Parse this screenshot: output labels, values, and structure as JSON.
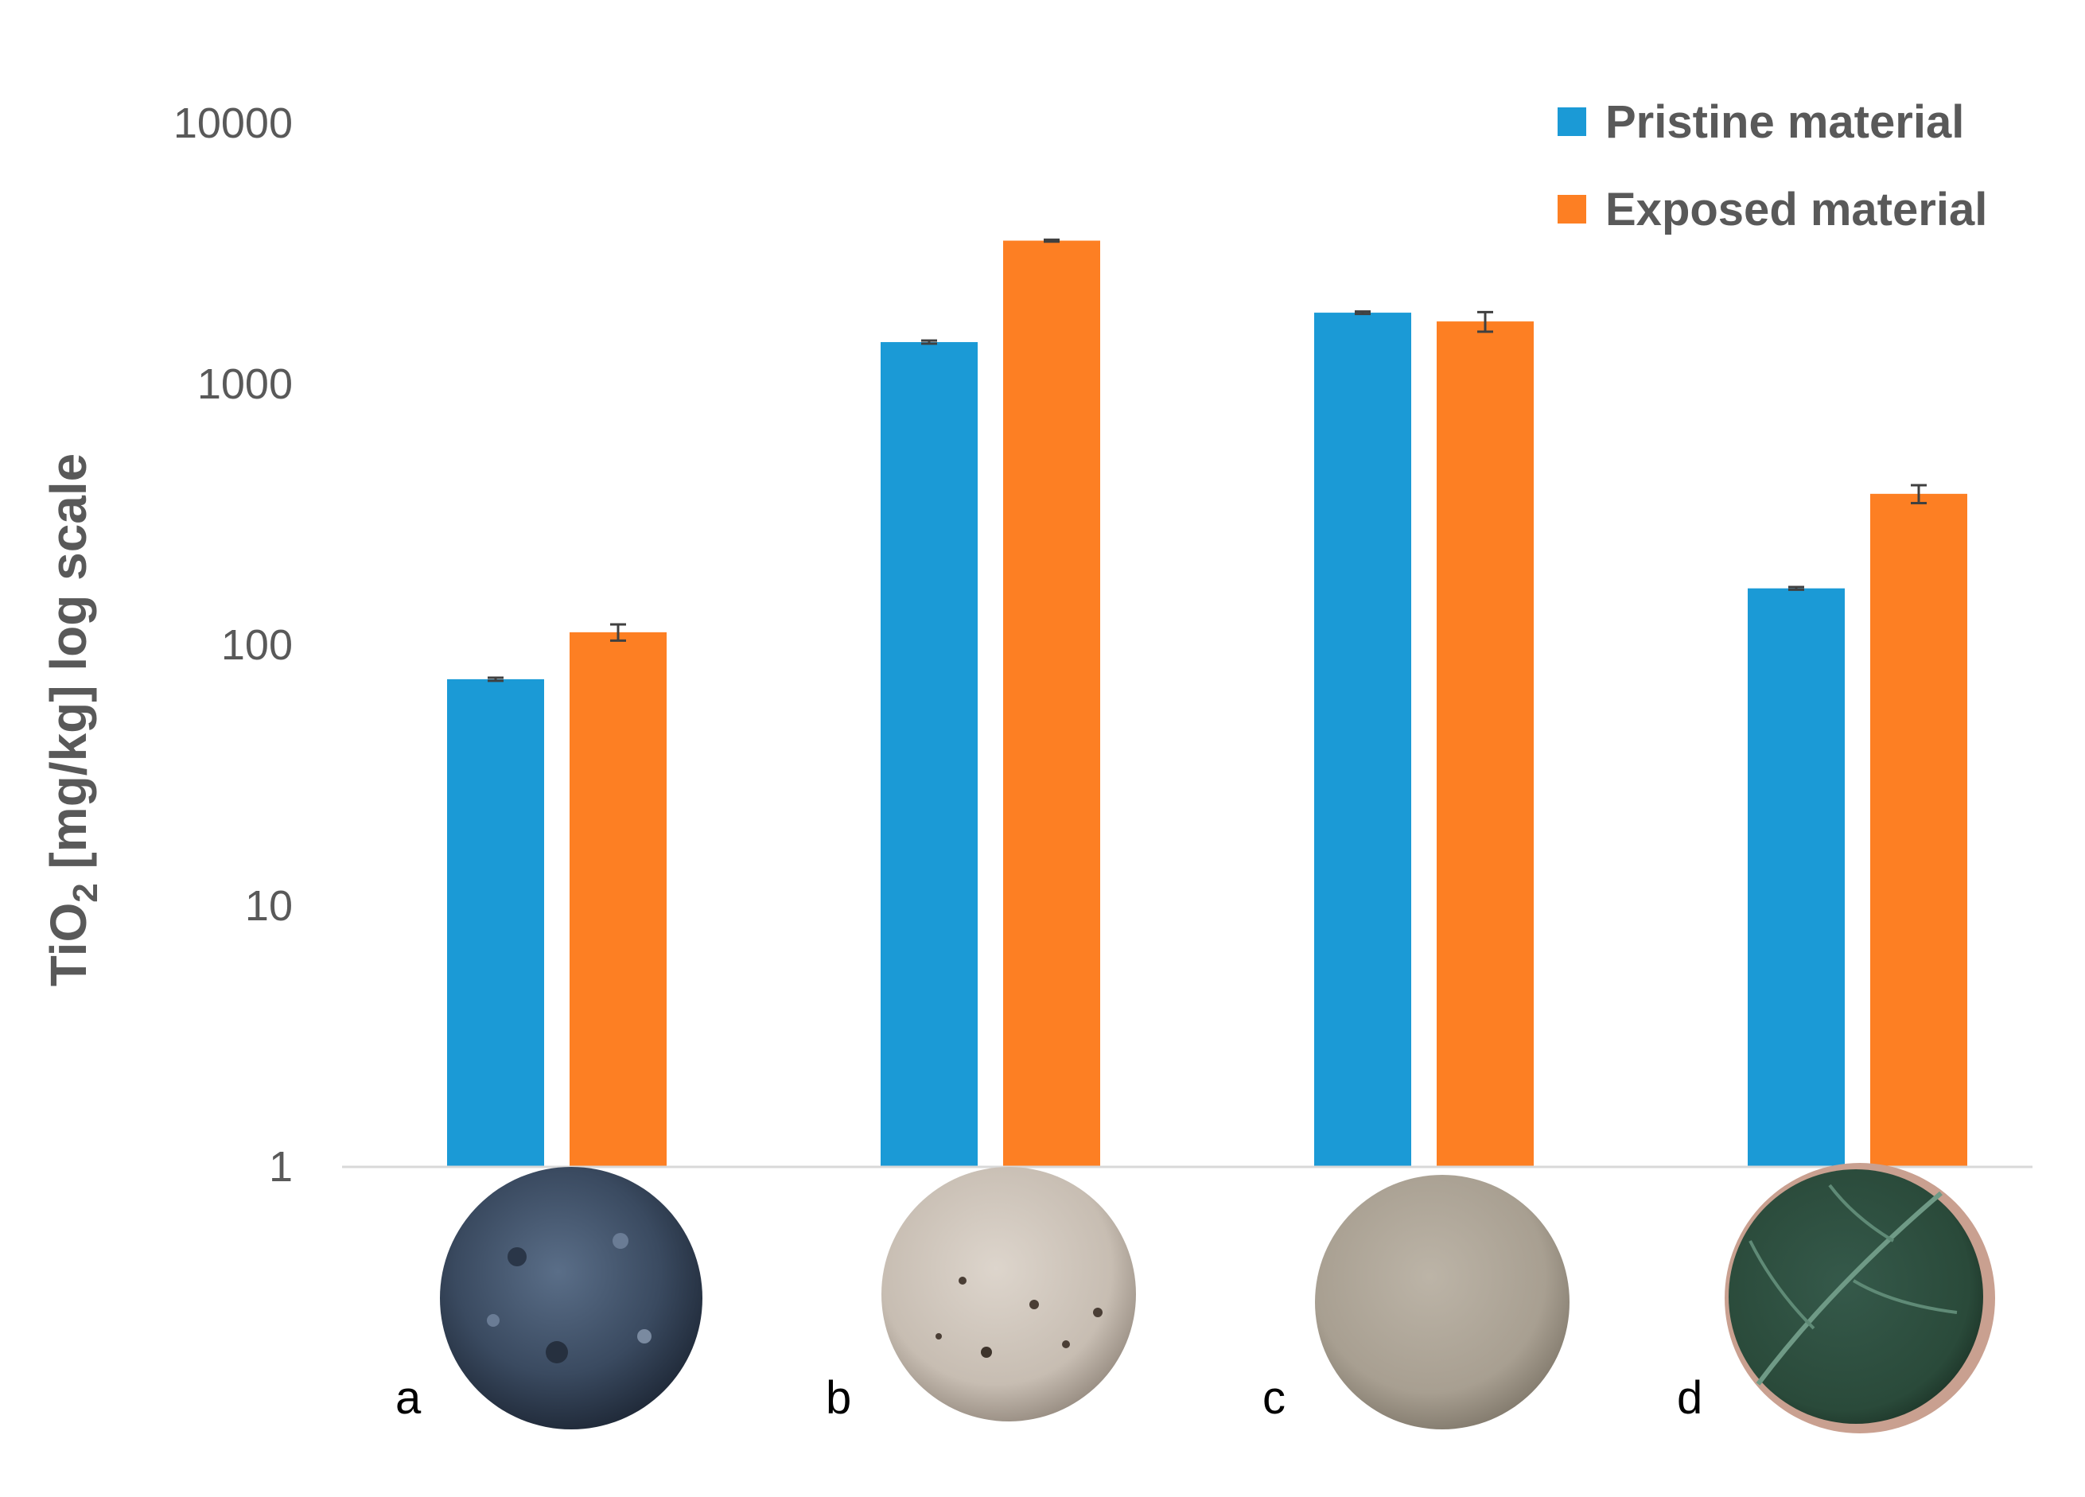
{
  "chart_data": {
    "type": "bar",
    "ylabel_parts": [
      "TiO",
      "2",
      " [mg/kg] log scale"
    ],
    "yscale": "log",
    "ylim": [
      1,
      10000
    ],
    "yticks": [
      "1",
      "10",
      "100",
      "1000",
      "10000"
    ],
    "categories": [
      "a",
      "b",
      "c",
      "d"
    ],
    "series": [
      {
        "name": "Pristine material",
        "color": "#1b9ad6",
        "values": [
          74,
          1450,
          1880,
          165
        ],
        "errors": [
          1,
          20,
          20,
          2
        ]
      },
      {
        "name": "Exposed material",
        "color": "#fd7f23",
        "values": [
          112,
          3550,
          1740,
          380
        ],
        "errors": [
          8,
          30,
          150,
          30
        ]
      }
    ],
    "legend_position": "top-right",
    "grid": false,
    "sample_photos": [
      {
        "category": "a",
        "color": "#3a4a60",
        "image": "dark-blue-grey-powder-sample"
      },
      {
        "category": "b",
        "color": "#c7bdb2",
        "image": "light-grey-porous-sample"
      },
      {
        "category": "c",
        "color": "#a89f91",
        "image": "smooth-taupe-sample"
      },
      {
        "category": "d",
        "color": "#2a4a3a",
        "image": "green-leaf-sample"
      }
    ]
  }
}
